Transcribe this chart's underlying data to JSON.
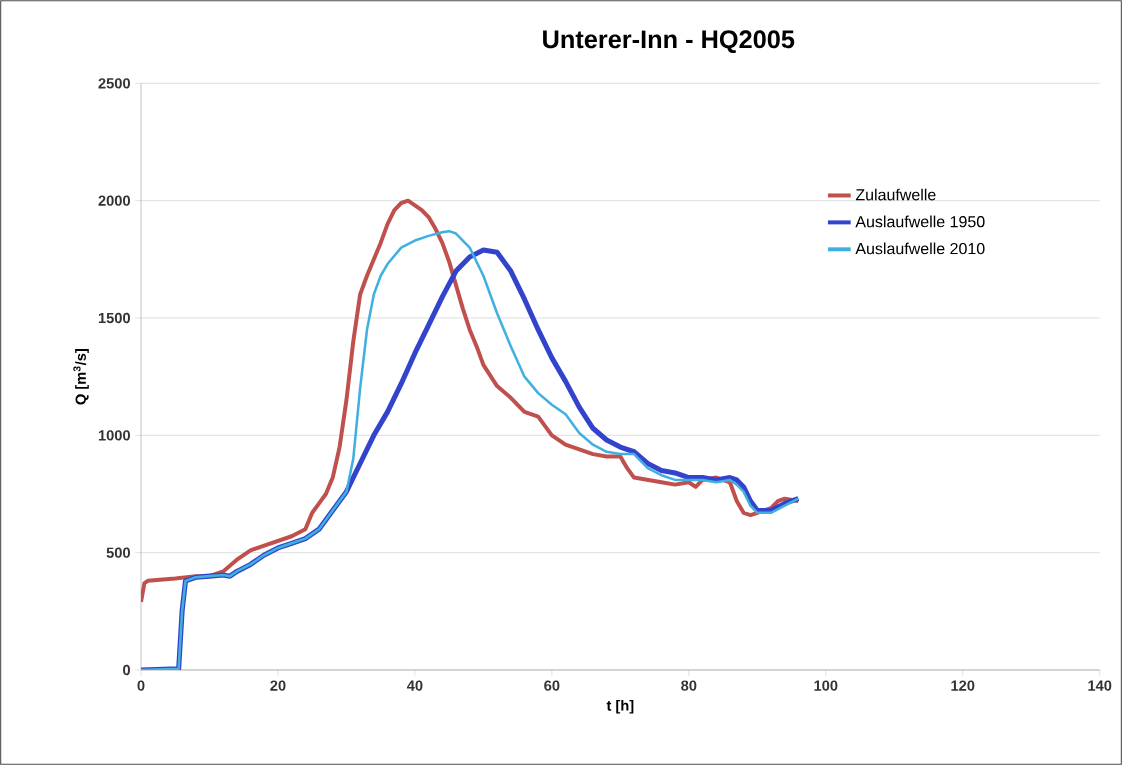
{
  "chart_data": {
    "type": "line",
    "title": "Unterer-Inn - HQ2005",
    "xlabel": "t [h]",
    "ylabel": "Q [m$^{3}$/s]",
    "xlim": [
      0,
      140
    ],
    "xticks": [
      0,
      20,
      40,
      60,
      80,
      100,
      120,
      140
    ],
    "ylim": [
      0,
      2500
    ],
    "yticks": [
      0,
      500,
      1000,
      1500,
      2000,
      2500
    ],
    "grid": "y",
    "legend": "right",
    "marker": "none",
    "line_style": "solid",
    "series": [
      {
        "name": "Zulaufwelle",
        "color": "#c0504d",
        "x": [
          0,
          0.5,
          1,
          5,
          8,
          10,
          12,
          14,
          16,
          18,
          20,
          22,
          24,
          25,
          26,
          27,
          28,
          29,
          30,
          31,
          32,
          33,
          34,
          35,
          36,
          37,
          38,
          39,
          40,
          41,
          42,
          43,
          44,
          45,
          46,
          47,
          48,
          49,
          50,
          52,
          54,
          56,
          58,
          60,
          62,
          64,
          66,
          68,
          70,
          71,
          72,
          74,
          76,
          78,
          80,
          81,
          82,
          84,
          86,
          87,
          88,
          89,
          90,
          92,
          93,
          94,
          96
        ],
        "values": [
          290,
          370,
          380,
          390,
          400,
          400,
          420,
          470,
          510,
          530,
          550,
          570,
          600,
          670,
          710,
          750,
          820,
          950,
          1150,
          1400,
          1600,
          1680,
          1750,
          1820,
          1900,
          1960,
          1990,
          2000,
          1980,
          1960,
          1930,
          1880,
          1820,
          1740,
          1640,
          1540,
          1450,
          1380,
          1300,
          1210,
          1160,
          1100,
          1080,
          1000,
          960,
          940,
          920,
          910,
          910,
          860,
          820,
          810,
          800,
          790,
          800,
          780,
          810,
          820,
          800,
          720,
          670,
          660,
          670,
          690,
          720,
          730,
          720
        ]
      },
      {
        "name": "Auslaufwelle 1950",
        "color": "#3344cc",
        "x": [
          0,
          5.5,
          6,
          6.5,
          8,
          10,
          12,
          13,
          14,
          16,
          18,
          20,
          22,
          24,
          26,
          28,
          30,
          32,
          34,
          36,
          38,
          40,
          42,
          44,
          46,
          48,
          50,
          52,
          54,
          56,
          58,
          60,
          62,
          64,
          66,
          68,
          70,
          72,
          74,
          76,
          78,
          80,
          82,
          84,
          86,
          87,
          88,
          89,
          90,
          92,
          94,
          96
        ],
        "values": [
          0,
          5,
          250,
          380,
          395,
          400,
          405,
          400,
          420,
          450,
          490,
          520,
          540,
          560,
          600,
          680,
          760,
          880,
          1000,
          1100,
          1220,
          1350,
          1470,
          1590,
          1700,
          1760,
          1790,
          1780,
          1700,
          1580,
          1450,
          1330,
          1230,
          1120,
          1030,
          980,
          950,
          930,
          880,
          850,
          840,
          820,
          820,
          810,
          820,
          810,
          780,
          720,
          680,
          680,
          710,
          730
        ]
      },
      {
        "name": "Auslaufwelle 2010",
        "color": "#3fb0e0",
        "x": [
          0,
          5.5,
          6,
          6.5,
          8,
          10,
          12,
          13,
          14,
          16,
          18,
          20,
          22,
          24,
          26,
          28,
          30,
          31,
          32,
          33,
          34,
          35,
          36,
          38,
          40,
          42,
          44,
          45,
          46,
          48,
          50,
          52,
          54,
          56,
          58,
          60,
          62,
          64,
          66,
          68,
          70,
          72,
          74,
          76,
          78,
          80,
          82,
          84,
          86,
          87,
          88,
          89,
          90,
          92,
          94,
          96
        ],
        "values": [
          0,
          5,
          250,
          380,
          395,
          400,
          405,
          400,
          420,
          450,
          490,
          520,
          540,
          560,
          600,
          680,
          760,
          900,
          1200,
          1450,
          1600,
          1680,
          1730,
          1800,
          1830,
          1850,
          1865,
          1870,
          1860,
          1800,
          1680,
          1520,
          1380,
          1250,
          1180,
          1130,
          1090,
          1010,
          960,
          930,
          920,
          920,
          860,
          830,
          810,
          810,
          810,
          800,
          810,
          790,
          760,
          700,
          670,
          670,
          700,
          730
        ]
      }
    ]
  }
}
